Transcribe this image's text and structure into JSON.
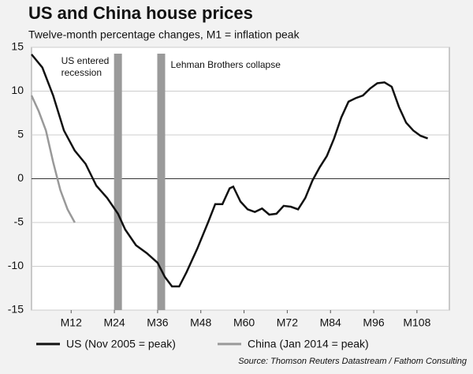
{
  "chart_data": {
    "type": "line",
    "title": "US and China house prices",
    "subtitle": "Twelve-month percentage changes, M1 = inflation peak",
    "source": "Source: Thomson Reuters Datastream / Fathom Consulting",
    "xlim": [
      1,
      117
    ],
    "xticks": [
      {
        "value": 12,
        "label": "M12"
      },
      {
        "value": 24,
        "label": "M24"
      },
      {
        "value": 36,
        "label": "M36"
      },
      {
        "value": 48,
        "label": "M48"
      },
      {
        "value": 60,
        "label": "M60"
      },
      {
        "value": 72,
        "label": "M72"
      },
      {
        "value": 84,
        "label": "M84"
      },
      {
        "value": 96,
        "label": "M96"
      },
      {
        "value": 108,
        "label": "M108"
      }
    ],
    "ylim": [
      -15,
      15
    ],
    "yticks": [
      15,
      10,
      5,
      0,
      -5,
      -10,
      -15
    ],
    "grid": true,
    "events": [
      {
        "x": 25,
        "color": "#9a9a9a",
        "label": [
          "US entered",
          "recession"
        ],
        "side": "left"
      },
      {
        "x": 37,
        "color": "#9a9a9a",
        "label": [
          "Lehman Brothers collapse"
        ],
        "side": "right"
      }
    ],
    "series": [
      {
        "name": "US (Nov 2005 = peak)",
        "color": "#111111",
        "x": [
          1,
          4,
          7,
          10,
          13,
          16,
          19,
          22,
          25,
          27,
          30,
          33,
          36,
          38,
          40,
          42,
          44,
          47,
          50,
          52,
          54,
          56,
          57,
          59,
          61,
          63,
          65,
          67,
          69,
          71,
          73,
          75,
          77,
          79,
          81,
          83,
          85,
          87,
          89,
          91,
          93,
          95,
          97,
          99,
          101,
          103,
          105,
          107,
          109,
          111
        ],
        "values": [
          14.2,
          12.7,
          9.5,
          5.5,
          3.2,
          1.7,
          -0.8,
          -2.2,
          -4,
          -5.8,
          -7.6,
          -8.5,
          -9.6,
          -11.2,
          -12.3,
          -12.3,
          -10.7,
          -8,
          -5,
          -2.9,
          -2.9,
          -1.1,
          -0.9,
          -2.6,
          -3.5,
          -3.8,
          -3.4,
          -4.1,
          -4,
          -3.1,
          -3.2,
          -3.5,
          -2.2,
          -0.2,
          1.3,
          2.6,
          4.6,
          7,
          8.8,
          9.2,
          9.5,
          10.3,
          10.9,
          11,
          10.5,
          8.2,
          6.4,
          5.5,
          4.9,
          4.6
        ]
      },
      {
        "name": "China (Jan 2014 = peak)",
        "color": "#999999",
        "x": [
          1,
          3,
          5,
          7,
          9,
          11,
          13
        ],
        "values": [
          9.5,
          7.7,
          5.5,
          1.9,
          -1.3,
          -3.5,
          -5
        ]
      }
    ]
  }
}
